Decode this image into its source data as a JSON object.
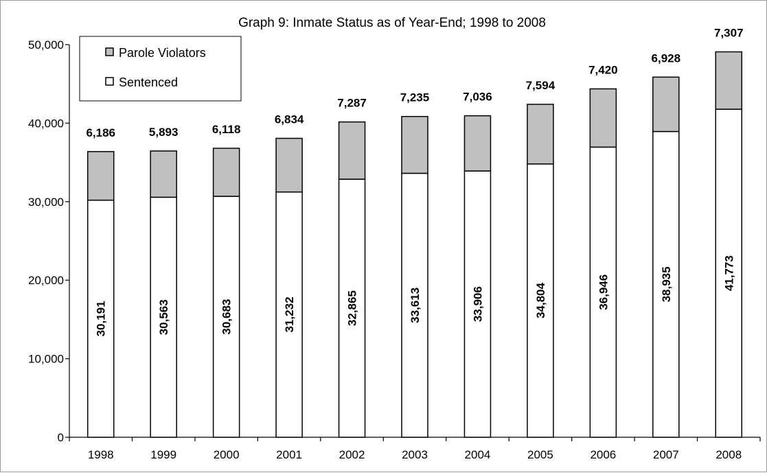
{
  "chart_data": {
    "type": "bar",
    "stacked": true,
    "title": "Graph 9: Inmate Status as of Year-End; 1998 to 2008",
    "xlabel": "",
    "ylabel": "",
    "ylim": [
      0,
      50000
    ],
    "yticks": [
      "0",
      "10,000",
      "20,000",
      "30,000",
      "40,000",
      "50,000"
    ],
    "ytick_values": [
      0,
      10000,
      20000,
      30000,
      40000,
      50000
    ],
    "grid": false,
    "legend_position": "top-left",
    "categories": [
      "1998",
      "1999",
      "2000",
      "2001",
      "2002",
      "2003",
      "2004",
      "2005",
      "2006",
      "2007",
      "2008"
    ],
    "series": [
      {
        "name": "Sentenced",
        "color": "#ffffff",
        "values": [
          30191,
          30563,
          30683,
          31232,
          32865,
          33613,
          33906,
          34804,
          36946,
          38935,
          41773
        ],
        "labels": [
          "30,191",
          "30,563",
          "30,683",
          "31,232",
          "32,865",
          "33,613",
          "33,906",
          "34,804",
          "36,946",
          "38,935",
          "41,773"
        ]
      },
      {
        "name": "Parole Violators",
        "color": "#c0c0c0",
        "values": [
          6186,
          5893,
          6118,
          6834,
          7287,
          7235,
          7036,
          7594,
          7420,
          6928,
          7307
        ],
        "labels": [
          "6,186",
          "5,893",
          "6,118",
          "6,834",
          "7,287",
          "7,235",
          "7,036",
          "7,594",
          "7,420",
          "6,928",
          "7,307"
        ]
      }
    ],
    "legend": {
      "items": [
        {
          "label": "Parole Violators",
          "color": "#c0c0c0"
        },
        {
          "label": "Sentenced",
          "color": "#ffffff"
        }
      ]
    }
  }
}
